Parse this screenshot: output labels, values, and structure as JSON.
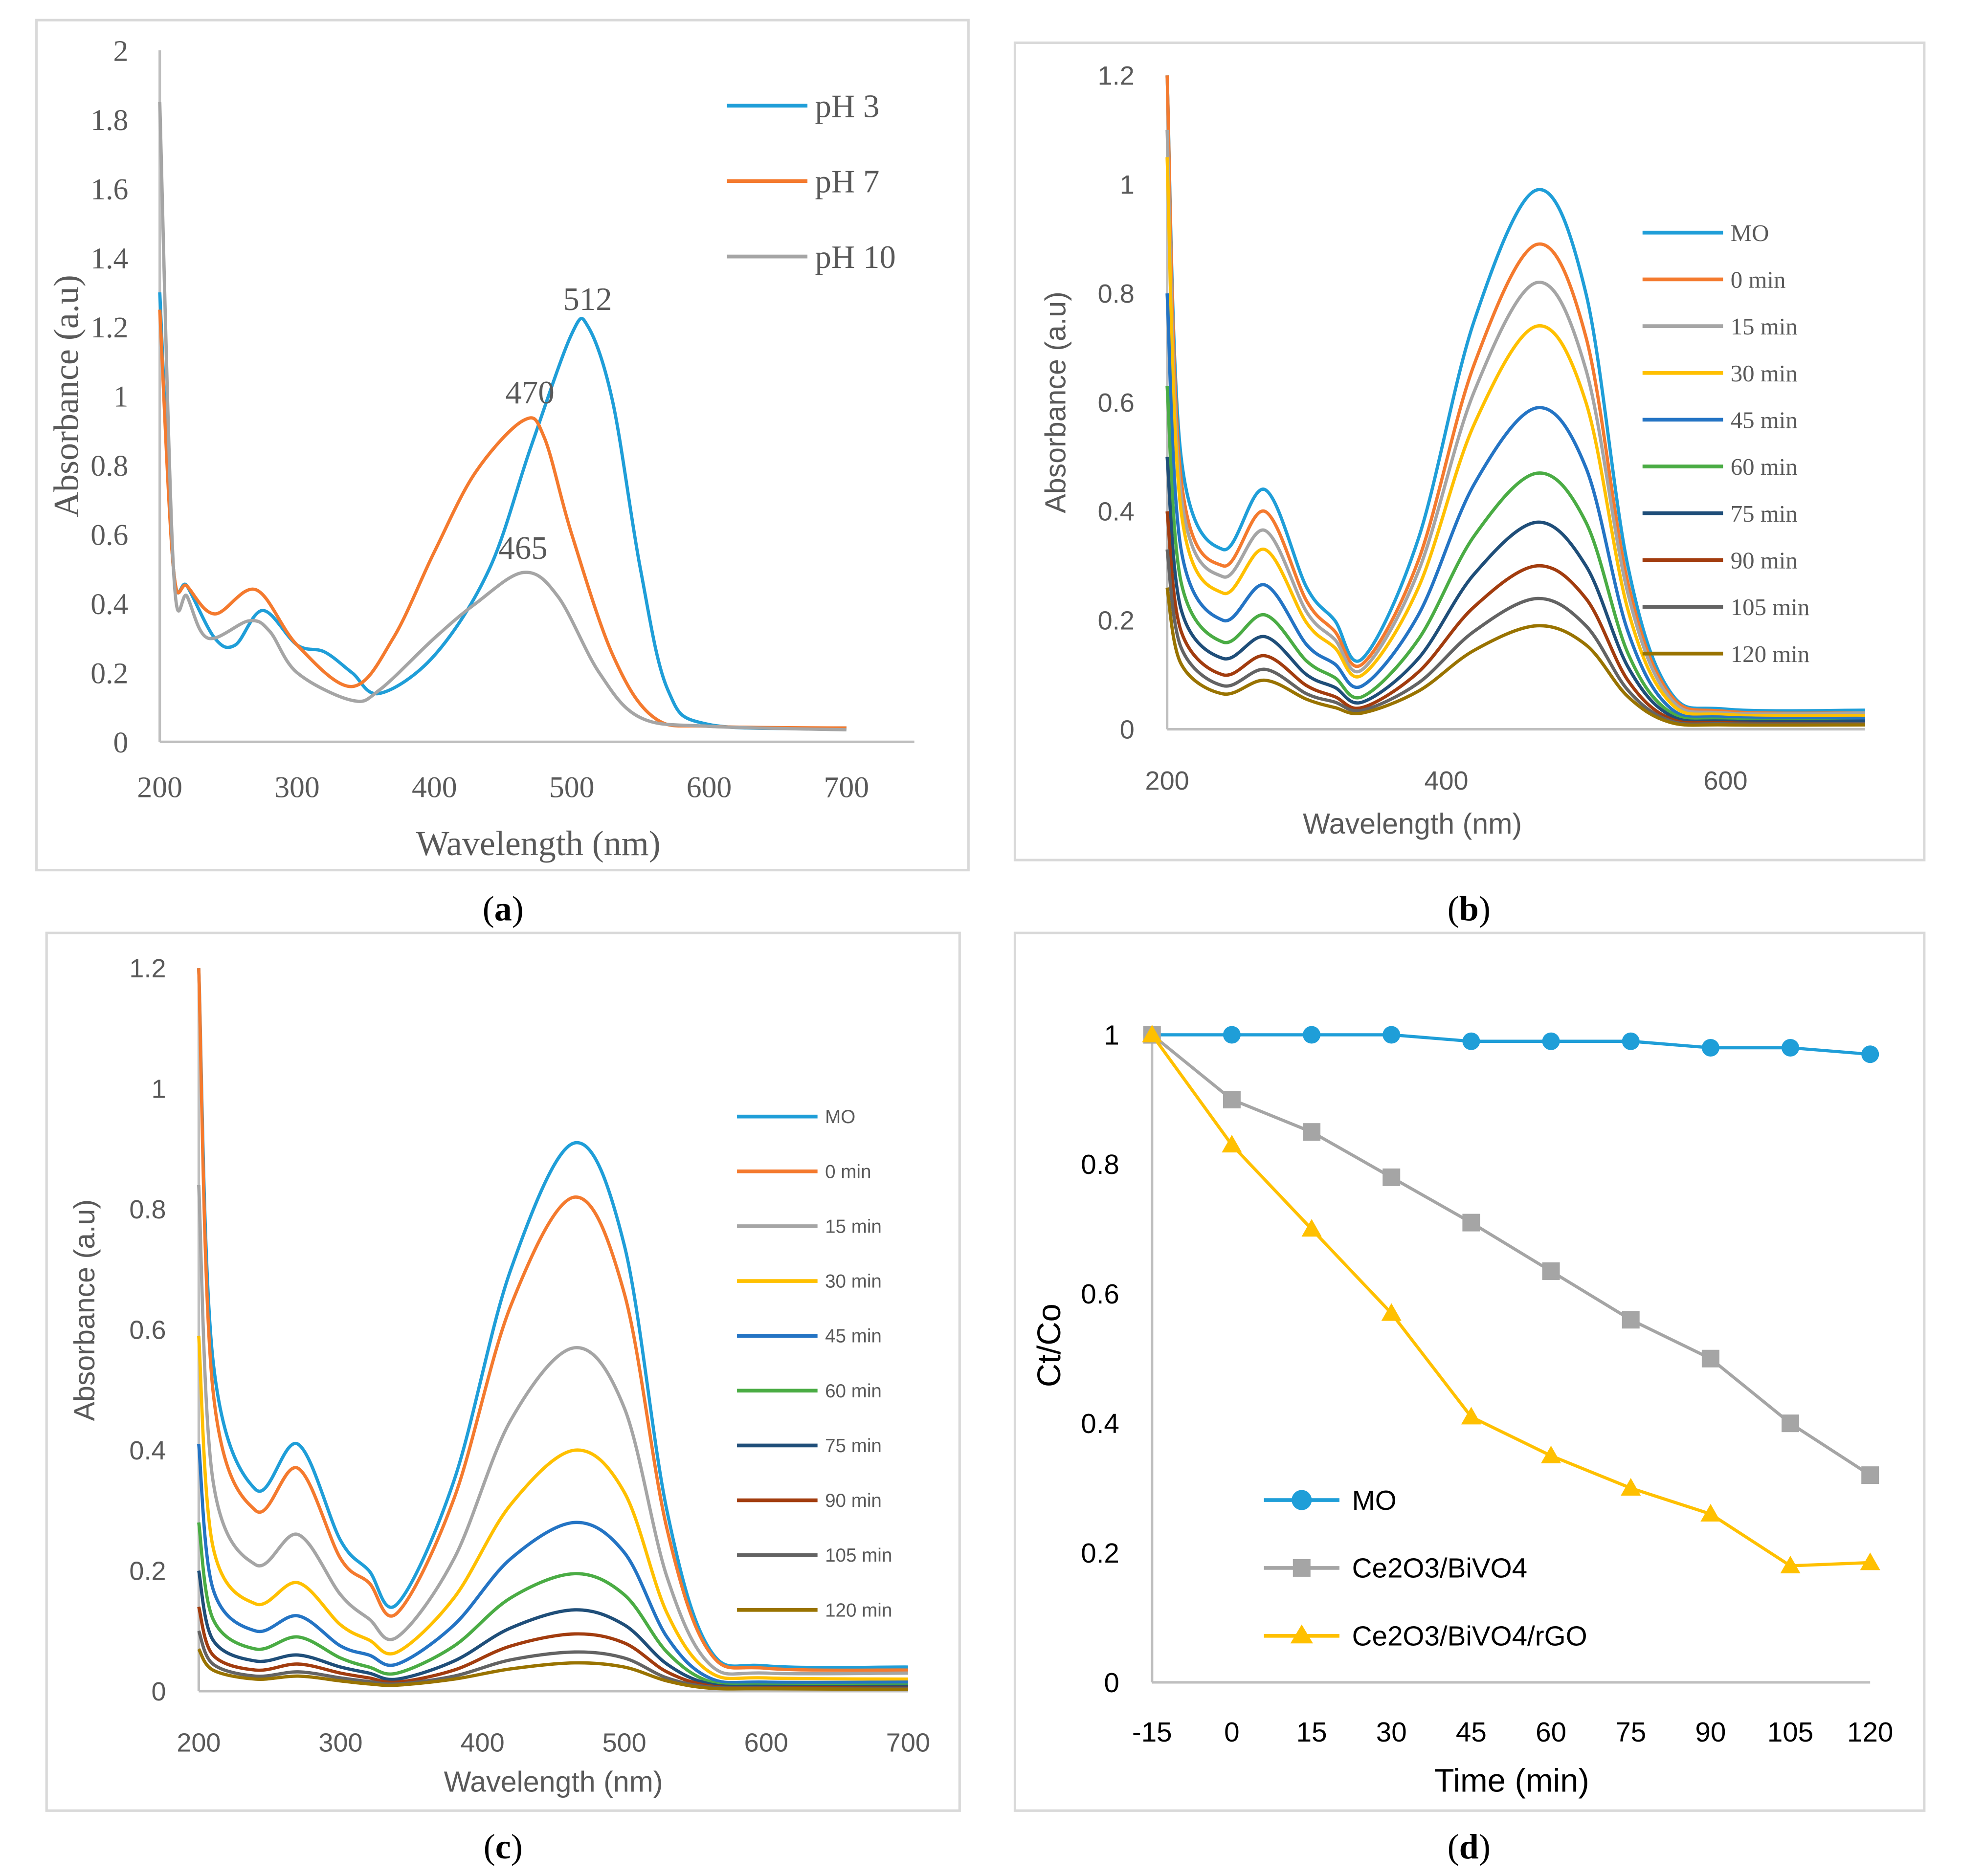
{
  "chart_data": [
    {
      "id": "a",
      "type": "line",
      "caption": "a",
      "xlabel": "Wavelength (nm)",
      "ylabel": "Absorbance (a.u)",
      "xlim": [
        200,
        750
      ],
      "ylim": [
        0,
        2
      ],
      "xticks": [
        200,
        300,
        400,
        500,
        600,
        700
      ],
      "yticks": [
        0,
        0.2,
        0.4,
        0.6,
        0.8,
        1,
        1.2,
        1.4,
        1.6,
        1.8,
        2
      ],
      "legend_position": "top-right",
      "annotations": [
        {
          "text": "512",
          "x": 512,
          "y": 1.22
        },
        {
          "text": "470",
          "x": 470,
          "y": 0.95
        },
        {
          "text": "465",
          "x": 465,
          "y": 0.5
        }
      ],
      "series": [
        {
          "name": "pH 3",
          "color": "#1f9ed8",
          "x": [
            200,
            210,
            220,
            240,
            255,
            275,
            300,
            320,
            340,
            360,
            400,
            440,
            470,
            500,
            512,
            530,
            550,
            570,
            600,
            700
          ],
          "y": [
            1.3,
            0.5,
            0.45,
            0.3,
            0.28,
            0.38,
            0.28,
            0.26,
            0.2,
            0.14,
            0.25,
            0.5,
            0.85,
            1.18,
            1.2,
            0.98,
            0.5,
            0.15,
            0.05,
            0.04
          ]
        },
        {
          "name": "pH 7",
          "color": "#f47a2e",
          "x": [
            200,
            210,
            220,
            240,
            270,
            300,
            340,
            370,
            400,
            430,
            465,
            480,
            500,
            530,
            560,
            600,
            700
          ],
          "y": [
            1.25,
            0.5,
            0.45,
            0.37,
            0.44,
            0.28,
            0.16,
            0.3,
            0.55,
            0.78,
            0.93,
            0.88,
            0.6,
            0.25,
            0.07,
            0.045,
            0.04
          ]
        },
        {
          "name": "pH 10",
          "color": "#a5a5a5",
          "x": [
            200,
            210,
            220,
            235,
            265,
            280,
            300,
            340,
            360,
            400,
            430,
            465,
            490,
            520,
            550,
            600,
            700
          ],
          "y": [
            1.85,
            0.5,
            0.42,
            0.3,
            0.35,
            0.32,
            0.2,
            0.12,
            0.15,
            0.3,
            0.4,
            0.49,
            0.42,
            0.2,
            0.07,
            0.045,
            0.035
          ]
        }
      ]
    },
    {
      "id": "b",
      "type": "line",
      "caption": "b",
      "xlabel": "Wavelength (nm)",
      "ylabel": "Absorbance (a.u)",
      "xlim": [
        200,
        700
      ],
      "ylim": [
        0,
        1.2
      ],
      "xticks": [
        200,
        400,
        600
      ],
      "yticks": [
        0,
        0.2,
        0.4,
        0.6,
        0.8,
        1,
        1.2
      ],
      "legend_position": "right",
      "x": [
        200,
        210,
        240,
        270,
        300,
        320,
        340,
        380,
        420,
        465,
        500,
        530,
        560,
        600,
        700
      ],
      "series": [
        {
          "name": "MO",
          "color": "#1f9ed8",
          "y": [
            1.2,
            0.5,
            0.33,
            0.44,
            0.26,
            0.2,
            0.13,
            0.35,
            0.75,
            0.99,
            0.8,
            0.3,
            0.07,
            0.037,
            0.035
          ]
        },
        {
          "name": "0 min",
          "color": "#f47a2e",
          "y": [
            1.2,
            0.46,
            0.3,
            0.4,
            0.235,
            0.18,
            0.12,
            0.31,
            0.67,
            0.89,
            0.72,
            0.27,
            0.065,
            0.033,
            0.03
          ]
        },
        {
          "name": "15 min",
          "color": "#a5a5a5",
          "y": [
            1.1,
            0.43,
            0.28,
            0.365,
            0.215,
            0.165,
            0.11,
            0.29,
            0.62,
            0.82,
            0.66,
            0.25,
            0.058,
            0.03,
            0.03
          ]
        },
        {
          "name": "30 min",
          "color": "#ffc000",
          "y": [
            1.05,
            0.4,
            0.25,
            0.33,
            0.195,
            0.15,
            0.1,
            0.26,
            0.56,
            0.74,
            0.6,
            0.22,
            0.05,
            0.027,
            0.025
          ]
        },
        {
          "name": "45 min",
          "color": "#2474c4",
          "y": [
            0.8,
            0.33,
            0.2,
            0.265,
            0.155,
            0.12,
            0.08,
            0.21,
            0.45,
            0.59,
            0.48,
            0.18,
            0.04,
            0.022,
            0.02
          ]
        },
        {
          "name": "60 min",
          "color": "#4aac44",
          "y": [
            0.63,
            0.27,
            0.16,
            0.21,
            0.125,
            0.095,
            0.06,
            0.165,
            0.355,
            0.47,
            0.38,
            0.14,
            0.032,
            0.018,
            0.015
          ]
        },
        {
          "name": "75 min",
          "color": "#1f4e79",
          "y": [
            0.5,
            0.22,
            0.13,
            0.17,
            0.1,
            0.077,
            0.05,
            0.13,
            0.285,
            0.38,
            0.3,
            0.115,
            0.026,
            0.015,
            0.015
          ]
        },
        {
          "name": "90 min",
          "color": "#a23c0e",
          "y": [
            0.4,
            0.18,
            0.1,
            0.135,
            0.08,
            0.06,
            0.04,
            0.105,
            0.225,
            0.3,
            0.24,
            0.09,
            0.02,
            0.012,
            0.01
          ]
        },
        {
          "name": "105 min",
          "color": "#636363",
          "y": [
            0.33,
            0.15,
            0.08,
            0.11,
            0.065,
            0.05,
            0.035,
            0.085,
            0.18,
            0.24,
            0.19,
            0.072,
            0.016,
            0.01,
            0.01
          ]
        },
        {
          "name": "120 min",
          "color": "#997300",
          "y": [
            0.26,
            0.12,
            0.065,
            0.09,
            0.055,
            0.04,
            0.03,
            0.07,
            0.145,
            0.19,
            0.155,
            0.06,
            0.013,
            0.008,
            0.008
          ]
        }
      ]
    },
    {
      "id": "c",
      "type": "line",
      "caption": "c",
      "xlabel": "Wavelength (nm)",
      "ylabel": "Absorbance (a.u)",
      "xlim": [
        200,
        700
      ],
      "ylim": [
        0,
        1.2
      ],
      "xticks": [
        200,
        300,
        400,
        500,
        600,
        700
      ],
      "yticks": [
        0,
        0.2,
        0.4,
        0.6,
        0.8,
        1,
        1.2
      ],
      "legend_position": "right",
      "x": [
        200,
        210,
        240,
        270,
        300,
        320,
        340,
        380,
        420,
        465,
        500,
        530,
        560,
        600,
        700
      ],
      "series": [
        {
          "name": "MO",
          "color": "#1f9ed8",
          "y": [
            1.2,
            0.55,
            0.335,
            0.41,
            0.25,
            0.2,
            0.145,
            0.35,
            0.7,
            0.91,
            0.74,
            0.3,
            0.07,
            0.042,
            0.04
          ]
        },
        {
          "name": "0 min",
          "color": "#f47a2e",
          "y": [
            1.2,
            0.5,
            0.3,
            0.37,
            0.22,
            0.18,
            0.13,
            0.32,
            0.64,
            0.82,
            0.66,
            0.27,
            0.065,
            0.038,
            0.035
          ]
        },
        {
          "name": "15 min",
          "color": "#a5a5a5",
          "y": [
            0.84,
            0.35,
            0.21,
            0.26,
            0.16,
            0.12,
            0.09,
            0.22,
            0.45,
            0.57,
            0.47,
            0.19,
            0.045,
            0.03,
            0.03
          ]
        },
        {
          "name": "30 min",
          "color": "#ffc000",
          "y": [
            0.59,
            0.24,
            0.145,
            0.18,
            0.11,
            0.085,
            0.065,
            0.155,
            0.31,
            0.4,
            0.33,
            0.13,
            0.032,
            0.022,
            0.02
          ]
        },
        {
          "name": "45 min",
          "color": "#2474c4",
          "y": [
            0.41,
            0.17,
            0.1,
            0.125,
            0.075,
            0.06,
            0.045,
            0.11,
            0.22,
            0.28,
            0.23,
            0.09,
            0.022,
            0.015,
            0.015
          ]
        },
        {
          "name": "60 min",
          "color": "#4aac44",
          "y": [
            0.28,
            0.12,
            0.07,
            0.09,
            0.055,
            0.04,
            0.03,
            0.075,
            0.155,
            0.195,
            0.16,
            0.065,
            0.016,
            0.01,
            0.01
          ]
        },
        {
          "name": "75 min",
          "color": "#1f4e79",
          "y": [
            0.2,
            0.085,
            0.05,
            0.06,
            0.04,
            0.03,
            0.02,
            0.05,
            0.105,
            0.135,
            0.11,
            0.045,
            0.012,
            0.008,
            0.008
          ]
        },
        {
          "name": "90 min",
          "color": "#a23c0e",
          "y": [
            0.14,
            0.06,
            0.035,
            0.045,
            0.03,
            0.022,
            0.015,
            0.035,
            0.075,
            0.095,
            0.08,
            0.032,
            0.009,
            0.006,
            0.005
          ]
        },
        {
          "name": "105 min",
          "color": "#636363",
          "y": [
            0.1,
            0.045,
            0.025,
            0.032,
            0.022,
            0.016,
            0.012,
            0.025,
            0.052,
            0.065,
            0.055,
            0.022,
            0.007,
            0.005,
            0.004
          ]
        },
        {
          "name": "120 min",
          "color": "#997300",
          "y": [
            0.07,
            0.035,
            0.02,
            0.025,
            0.017,
            0.012,
            0.01,
            0.02,
            0.037,
            0.047,
            0.04,
            0.017,
            0.005,
            0.004,
            0.003
          ]
        }
      ]
    },
    {
      "id": "d",
      "type": "line",
      "caption": "d",
      "xlabel": "Time (min)",
      "ylabel": "Ct/Co",
      "categories": [
        "-15",
        "0",
        "15",
        "30",
        "45",
        "60",
        "75",
        "90",
        "105",
        "120"
      ],
      "ylim": [
        0,
        1
      ],
      "yticks": [
        0,
        0.2,
        0.4,
        0.6,
        0.8,
        1
      ],
      "legend_position": "bottom-left",
      "series": [
        {
          "name": "MO",
          "color": "#1f9ed8",
          "marker": "circle",
          "values": [
            1,
            1,
            1,
            1,
            0.99,
            0.99,
            0.99,
            0.98,
            0.98,
            0.97
          ]
        },
        {
          "name": "Ce2O3/BiVO4",
          "color": "#a5a5a5",
          "marker": "square",
          "values": [
            1,
            0.9,
            0.85,
            0.78,
            0.71,
            0.635,
            0.56,
            0.5,
            0.4,
            0.32
          ]
        },
        {
          "name": "Ce2O3/BiVO4/rGO",
          "color": "#ffc000",
          "marker": "triangle",
          "values": [
            1,
            0.83,
            0.7,
            0.57,
            0.41,
            0.35,
            0.3,
            0.26,
            0.18,
            0.185
          ]
        }
      ]
    }
  ]
}
